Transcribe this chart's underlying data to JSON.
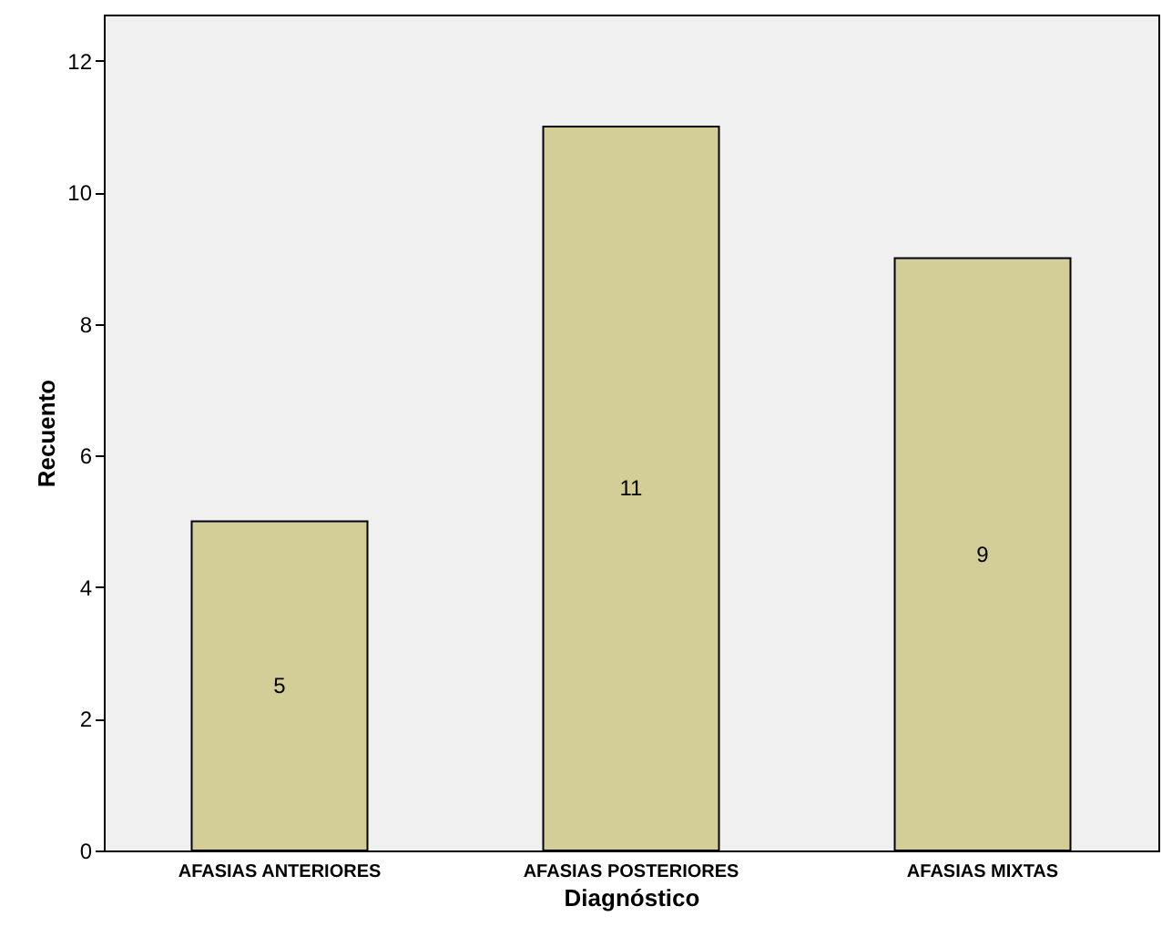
{
  "chart_data": {
    "type": "bar",
    "xlabel": "Diagnóstico",
    "ylabel": "Recuento",
    "categories": [
      "AFASIAS ANTERIORES",
      "AFASIAS POSTERIORES",
      "AFASIAS MIXTAS"
    ],
    "values": [
      5,
      11,
      9
    ],
    "color": "#d3ce97",
    "ylim": [
      0,
      12.7
    ],
    "yticks": [
      0,
      2,
      4,
      6,
      8,
      10,
      12
    ],
    "data_labels": true
  }
}
